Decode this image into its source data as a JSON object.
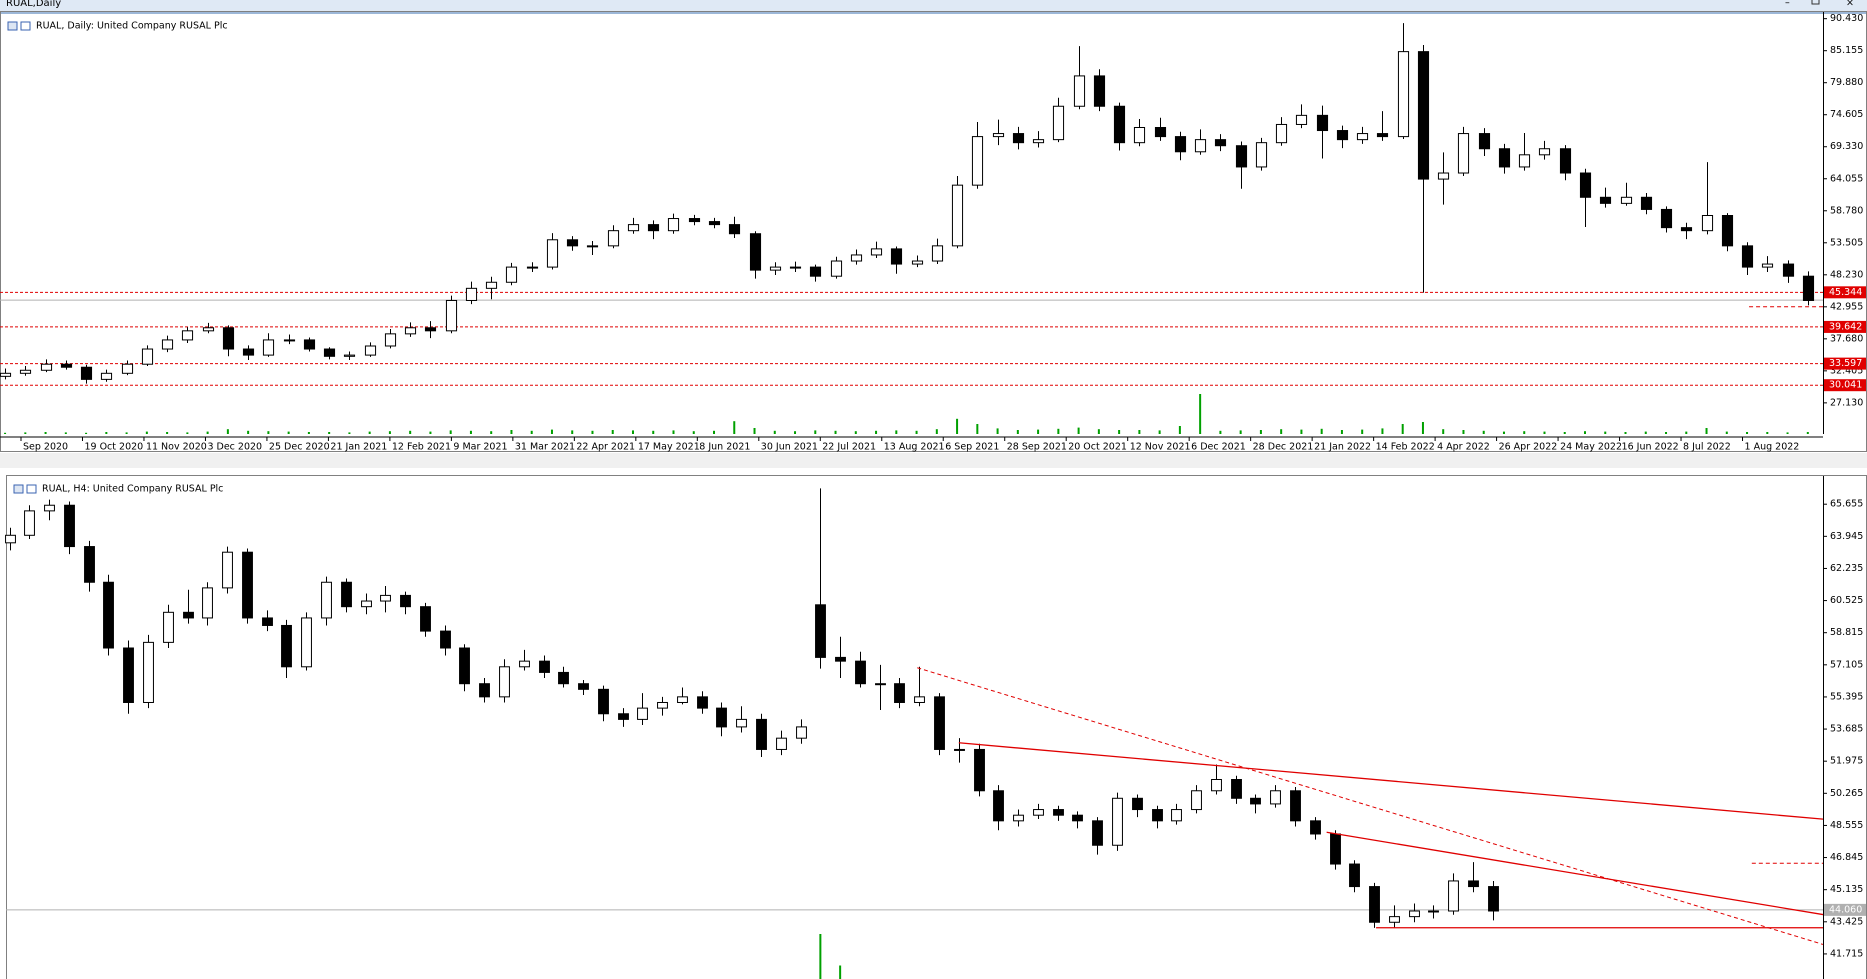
{
  "window": {
    "title": "RUAL,Daily"
  },
  "chart_data": [
    {
      "type": "candlestick",
      "title": "RUAL, Daily: United Company RUSAL Plc",
      "ylim": [
        22,
        91.2
      ],
      "xlim": [
        -0.25,
        89.75
      ],
      "yticks": [
        {
          "value": 90.43,
          "label": "90.430"
        },
        85.155,
        {
          "value": 79.88,
          "label": "79.880"
        },
        74.605,
        {
          "value": 69.33,
          "label": "69.330"
        },
        64.055,
        {
          "value": 58.78,
          "label": "58.780"
        },
        53.505,
        {
          "value": 48.23,
          "label": "48.230"
        },
        42.955,
        {
          "value": 37.68,
          "label": "37.680"
        },
        32.405,
        {
          "value": 27.13,
          "label": "27.130"
        }
      ],
      "xlabels": [
        "Sep 2020",
        "19 Oct 2020",
        "11 Nov 2020",
        "3 Dec 2020",
        "25 Dec 2020",
        "21 Jan 2021",
        "12 Feb 2021",
        "9 Mar 2021",
        "31 Mar 2021",
        "22 Apr 2021",
        "17 May 2021",
        "8 Jun 2021",
        "30 Jun 2021",
        "22 Jul 2021",
        "13 Aug 2021",
        "6 Sep 2021",
        "28 Sep 2021",
        "20 Oct 2021",
        "12 Nov 2021",
        "6 Dec 2021",
        "28 Dec 2021",
        "21 Jan 2022",
        "14 Feb 2022",
        "4 Apr 2022",
        "26 Apr 2022",
        "24 May 2022",
        "16 Jun 2022",
        "8 Jul 2022",
        "1 Aug 2022"
      ],
      "candles": [
        [
          31.5,
          32.8,
          31.0,
          32
        ],
        [
          32,
          33.2,
          31.6,
          32.5
        ],
        [
          32.5,
          34.3,
          32.2,
          33.5
        ],
        [
          33.5,
          34.1,
          32.6,
          33
        ],
        [
          33,
          33.4,
          30.3,
          31
        ],
        [
          31,
          32.6,
          30.6,
          32
        ],
        [
          32,
          34.1,
          31.7,
          33.5
        ],
        [
          33.5,
          36.6,
          33.2,
          36
        ],
        [
          36,
          38.2,
          35.5,
          37.5
        ],
        [
          37.5,
          39.6,
          37.0,
          39
        ],
        [
          39,
          40.3,
          38.6,
          39.5
        ],
        [
          39.5,
          39.9,
          34.8,
          36
        ],
        [
          36,
          36.6,
          34.2,
          35
        ],
        [
          35,
          38.6,
          34.7,
          37.5
        ],
        [
          37.5,
          38.4,
          36.8,
          37.5
        ],
        [
          37.5,
          37.9,
          35.6,
          36
        ],
        [
          36,
          36.3,
          34.3,
          34.8
        ],
        [
          34.8,
          35.6,
          34.2,
          35
        ],
        [
          35,
          37.1,
          34.7,
          36.5
        ],
        [
          36.5,
          39.3,
          36.1,
          38.5
        ],
        [
          38.5,
          40.4,
          38.0,
          39.5
        ],
        [
          39.5,
          40.6,
          37.8,
          39
        ],
        [
          39,
          44.8,
          38.6,
          44
        ],
        [
          44,
          47.1,
          43.4,
          46
        ],
        [
          46,
          47.9,
          44.2,
          47
        ],
        [
          47,
          50.2,
          46.5,
          49.5
        ],
        [
          49.5,
          50.3,
          48.7,
          49.5
        ],
        [
          49.5,
          55.1,
          49.1,
          54
        ],
        [
          54,
          54.6,
          52.2,
          53
        ],
        [
          53,
          53.8,
          51.5,
          53
        ],
        [
          53,
          56.4,
          52.6,
          55.5
        ],
        [
          55.5,
          57.6,
          55.0,
          56.5
        ],
        [
          56.5,
          57.2,
          54.1,
          55.5
        ],
        [
          55.5,
          58.3,
          55.0,
          57.5
        ],
        [
          57.5,
          58.1,
          56.4,
          57
        ],
        [
          57,
          57.6,
          55.9,
          56.5
        ],
        [
          56.5,
          57.8,
          54.3,
          55
        ],
        [
          55,
          55.4,
          47.6,
          49
        ],
        [
          49,
          50.3,
          48.2,
          49.5
        ],
        [
          49.5,
          50.4,
          48.7,
          49.5
        ],
        [
          49.5,
          49.9,
          47.1,
          48
        ],
        [
          48,
          51.2,
          47.6,
          50.5
        ],
        [
          50.5,
          52.4,
          49.9,
          51.5
        ],
        [
          51.5,
          53.7,
          51.0,
          52.5
        ],
        [
          52.5,
          52.9,
          48.4,
          50
        ],
        [
          50,
          51.4,
          49.5,
          50.5
        ],
        [
          50.5,
          54.2,
          50.0,
          53
        ],
        [
          53,
          64.5,
          52.6,
          63
        ],
        [
          63,
          73.4,
          62.4,
          71
        ],
        [
          71,
          73.8,
          69.6,
          71.5
        ],
        [
          71.5,
          72.6,
          68.9,
          70
        ],
        [
          70,
          71.9,
          69.2,
          70.5
        ],
        [
          70.5,
          77.4,
          70.1,
          76
        ],
        [
          76,
          85.9,
          75.5,
          81
        ],
        [
          81,
          82.1,
          75.2,
          76
        ],
        [
          76,
          76.6,
          68.7,
          70
        ],
        [
          70,
          73.9,
          69.4,
          72.5
        ],
        [
          72.5,
          74.1,
          70.3,
          71
        ],
        [
          71,
          71.8,
          67.1,
          68.5
        ],
        [
          68.5,
          72.2,
          68.0,
          70.5
        ],
        [
          70.5,
          71.4,
          68.6,
          69.5
        ],
        [
          69.5,
          70.2,
          62.4,
          66
        ],
        [
          66,
          70.8,
          65.4,
          70
        ],
        [
          70,
          74.2,
          69.5,
          73
        ],
        [
          73,
          76.3,
          72.4,
          74.5
        ],
        [
          74.5,
          76.1,
          67.4,
          72
        ],
        [
          72,
          72.8,
          69.1,
          70.5
        ],
        [
          70.5,
          72.6,
          69.8,
          71.5
        ],
        [
          71.5,
          75.2,
          70.3,
          71
        ],
        [
          71,
          89.7,
          70.6,
          85
        ],
        [
          85,
          86.1,
          45.3,
          64
        ],
        [
          64,
          68.4,
          59.8,
          65
        ],
        [
          65,
          72.6,
          64.5,
          71.5
        ],
        [
          71.5,
          72.4,
          67.8,
          69
        ],
        [
          69,
          69.8,
          64.9,
          66
        ],
        [
          66,
          71.6,
          65.4,
          68
        ],
        [
          68,
          70.3,
          67.2,
          69
        ],
        [
          69,
          69.6,
          63.8,
          65
        ],
        [
          65,
          65.7,
          56.1,
          61
        ],
        [
          61,
          62.6,
          59.3,
          60
        ],
        [
          60,
          63.4,
          59.6,
          61
        ],
        [
          61,
          61.7,
          58.2,
          59
        ],
        [
          59,
          59.5,
          55.2,
          56
        ],
        [
          56,
          56.8,
          54.1,
          55.5
        ],
        [
          55.5,
          66.8,
          54.9,
          58
        ],
        [
          58,
          58.4,
          52.1,
          53
        ],
        [
          53,
          53.6,
          48.2,
          49.5
        ],
        [
          49.5,
          51.3,
          48.7,
          50
        ],
        [
          50,
          50.6,
          46.9,
          48
        ],
        [
          48,
          48.8,
          43.2,
          44
        ]
      ],
      "volumes": [
        0.3,
        0.4,
        0.5,
        0.4,
        0.3,
        0.5,
        0.4,
        0.6,
        0.5,
        0.4,
        0.6,
        1.2,
        0.8,
        0.7,
        0.6,
        0.5,
        0.5,
        0.4,
        0.6,
        0.7,
        0.8,
        0.6,
        0.9,
        0.8,
        0.7,
        1.0,
        0.8,
        1.1,
        0.9,
        0.8,
        1.0,
        0.9,
        0.8,
        0.9,
        0.7,
        0.8,
        3.2,
        1.5,
        0.8,
        0.7,
        0.9,
        0.8,
        0.7,
        0.8,
        0.9,
        0.8,
        1.2,
        3.8,
        2.5,
        1.4,
        1.0,
        1.1,
        1.3,
        1.6,
        1.2,
        1.0,
        1.0,
        0.9,
        2.0,
        10,
        0.8,
        0.9,
        1.0,
        1.2,
        1.1,
        1.3,
        1.0,
        1.1,
        1.4,
        2.5,
        3.0,
        1.2,
        1.0,
        0.8,
        0.6,
        0.7,
        0.6,
        0.5,
        0.7,
        0.6,
        0.5,
        0.6,
        0.5,
        0.6,
        1.5,
        0.6,
        0.5,
        0.5,
        0.4,
        0.5
      ],
      "candle_color": "#000000",
      "volume_color": "#00a000",
      "levels": [
        45.344,
        39.642,
        33.597,
        30.041
      ],
      "level_color": "#e00000",
      "price_line": 44.06,
      "lines": [
        {
          "x": [
            86.1,
            89.75
          ],
          "y": [
            42.97,
            42.97
          ],
          "dashed": true
        }
      ]
    },
    {
      "type": "candlestick",
      "title": "RUAL, H4: United Company RUSAL Plc",
      "ylim": [
        40.38,
        67.05
      ],
      "xlim": [
        -0.18,
        91.7
      ],
      "yticks": [
        65.655,
        63.945,
        62.235,
        60.525,
        58.815,
        57.105,
        55.395,
        53.685,
        51.975,
        50.265,
        48.555,
        46.845,
        45.135,
        43.425,
        41.715
      ],
      "candles": [
        [
          63.6,
          64.4,
          63.2,
          64.0
        ],
        [
          64.0,
          65.6,
          63.8,
          65.3
        ],
        [
          65.3,
          65.9,
          64.8,
          65.6
        ],
        [
          65.6,
          65.8,
          63.0,
          63.4
        ],
        [
          63.4,
          63.7,
          61.0,
          61.5
        ],
        [
          61.5,
          61.9,
          57.6,
          58.0
        ],
        [
          58.0,
          58.4,
          54.5,
          55.1
        ],
        [
          55.1,
          58.7,
          54.8,
          58.3
        ],
        [
          58.3,
          60.3,
          58.0,
          59.9
        ],
        [
          59.9,
          61.1,
          59.3,
          59.6
        ],
        [
          59.6,
          61.5,
          59.2,
          61.2
        ],
        [
          61.2,
          63.4,
          60.9,
          63.1
        ],
        [
          63.1,
          63.3,
          59.3,
          59.6
        ],
        [
          59.6,
          60.0,
          58.9,
          59.2
        ],
        [
          59.2,
          59.5,
          56.4,
          57.0
        ],
        [
          57.0,
          59.9,
          56.8,
          59.6
        ],
        [
          59.6,
          61.8,
          59.2,
          61.5
        ],
        [
          61.5,
          61.7,
          59.9,
          60.2
        ],
        [
          60.2,
          60.9,
          59.8,
          60.5
        ],
        [
          60.5,
          61.3,
          59.9,
          60.8
        ],
        [
          60.8,
          61.0,
          59.8,
          60.2
        ],
        [
          60.2,
          60.4,
          58.6,
          58.9
        ],
        [
          58.9,
          59.2,
          57.6,
          58.0
        ],
        [
          58.0,
          58.2,
          55.7,
          56.1
        ],
        [
          56.1,
          56.4,
          55.1,
          55.4
        ],
        [
          55.4,
          57.4,
          55.1,
          57.0
        ],
        [
          57.0,
          57.9,
          56.8,
          57.3
        ],
        [
          57.3,
          57.6,
          56.4,
          56.7
        ],
        [
          56.7,
          57.0,
          55.9,
          56.1
        ],
        [
          56.1,
          56.3,
          55.5,
          55.8
        ],
        [
          55.8,
          56.0,
          54.1,
          54.5
        ],
        [
          54.5,
          54.8,
          53.8,
          54.2
        ],
        [
          54.2,
          55.6,
          53.9,
          54.8
        ],
        [
          54.8,
          55.4,
          54.4,
          55.1
        ],
        [
          55.1,
          55.9,
          55.0,
          55.4
        ],
        [
          55.4,
          55.7,
          54.5,
          54.8
        ],
        [
          54.8,
          55.1,
          53.3,
          53.8
        ],
        [
          53.8,
          54.9,
          53.5,
          54.2
        ],
        [
          54.2,
          54.5,
          52.2,
          52.6
        ],
        [
          52.6,
          53.6,
          52.3,
          53.2
        ],
        [
          53.2,
          54.2,
          52.9,
          53.8
        ],
        [
          60.3,
          66.5,
          56.9,
          57.5
        ],
        [
          57.5,
          58.6,
          56.4,
          57.3
        ],
        [
          57.3,
          57.8,
          55.9,
          56.1
        ],
        [
          56.1,
          57.1,
          54.7,
          56.1
        ],
        [
          56.1,
          56.4,
          54.8,
          55.1
        ],
        [
          55.1,
          57.0,
          54.9,
          55.4
        ],
        [
          55.4,
          55.6,
          52.3,
          52.6
        ],
        [
          52.6,
          53.2,
          51.9,
          52.6
        ],
        [
          52.6,
          52.9,
          50.1,
          50.4
        ],
        [
          50.4,
          50.7,
          48.3,
          48.8
        ],
        [
          48.8,
          49.4,
          48.5,
          49.1
        ],
        [
          49.1,
          49.7,
          48.9,
          49.4
        ],
        [
          49.4,
          49.6,
          48.8,
          49.1
        ],
        [
          49.1,
          49.3,
          48.4,
          48.8
        ],
        [
          48.8,
          49.0,
          47.0,
          47.5
        ],
        [
          47.5,
          50.3,
          47.2,
          50.0
        ],
        [
          50.0,
          50.2,
          49.0,
          49.4
        ],
        [
          49.4,
          49.6,
          48.4,
          48.8
        ],
        [
          48.8,
          49.7,
          48.6,
          49.4
        ],
        [
          49.4,
          50.7,
          49.2,
          50.4
        ],
        [
          50.4,
          51.8,
          50.2,
          51.0
        ],
        [
          51.0,
          51.2,
          49.7,
          50.0
        ],
        [
          50.0,
          50.2,
          49.2,
          49.7
        ],
        [
          49.7,
          50.7,
          49.5,
          50.4
        ],
        [
          50.4,
          50.6,
          48.5,
          48.8
        ],
        [
          48.8,
          49.0,
          47.8,
          48.1
        ],
        [
          48.1,
          48.3,
          46.2,
          46.5
        ],
        [
          46.5,
          46.7,
          45.0,
          45.3
        ],
        [
          45.3,
          45.5,
          43.1,
          43.4
        ],
        [
          43.4,
          44.3,
          43.1,
          43.7
        ],
        [
          43.7,
          44.4,
          43.4,
          44.0
        ],
        [
          44.0,
          44.3,
          43.6,
          44.0
        ],
        [
          44.0,
          46.0,
          43.8,
          45.6
        ],
        [
          45.6,
          46.6,
          45.0,
          45.3
        ],
        [
          45.3,
          45.6,
          43.5,
          44.0
        ]
      ],
      "volumes": [
        0,
        0,
        0,
        0,
        0,
        0,
        0,
        0,
        0,
        0,
        0,
        0,
        0,
        0,
        0,
        0,
        0,
        0,
        0,
        0,
        0,
        0,
        0,
        0,
        0,
        0,
        0,
        0,
        0,
        0,
        0,
        0,
        0,
        0,
        0,
        0,
        0,
        0,
        0,
        0,
        0,
        10,
        3,
        0,
        0,
        0,
        0,
        0,
        0,
        0,
        0,
        0,
        0,
        0,
        0,
        0,
        0,
        0,
        0,
        0,
        0,
        0,
        0,
        0,
        0,
        0,
        0,
        0,
        0,
        0,
        0,
        0,
        0,
        0,
        0,
        0
      ],
      "candle_color": "#000000",
      "volume_color": "#00a000",
      "price_line": {
        "value": 44.06,
        "label": "44.060"
      },
      "price_line_color": "#b0b0b0",
      "line_color": "#e00000",
      "lines": [
        {
          "x": [
            48.0,
            91.7
          ],
          "y": [
            52.955,
            48.89
          ],
          "dashed": false
        },
        {
          "x": [
            66.6,
            91.7
          ],
          "y": [
            48.19,
            43.81
          ],
          "dashed": false
        },
        {
          "x": [
            45.9,
            91.7
          ],
          "y": [
            56.95,
            42.22
          ],
          "dashed": true
        },
        {
          "x": [
            69.1,
            91.7
          ],
          "y": [
            43.11,
            43.11
          ],
          "dashed": false
        },
        {
          "x": [
            88.1,
            91.7
          ],
          "y": [
            46.54,
            46.54
          ],
          "dashed": true
        }
      ]
    }
  ]
}
